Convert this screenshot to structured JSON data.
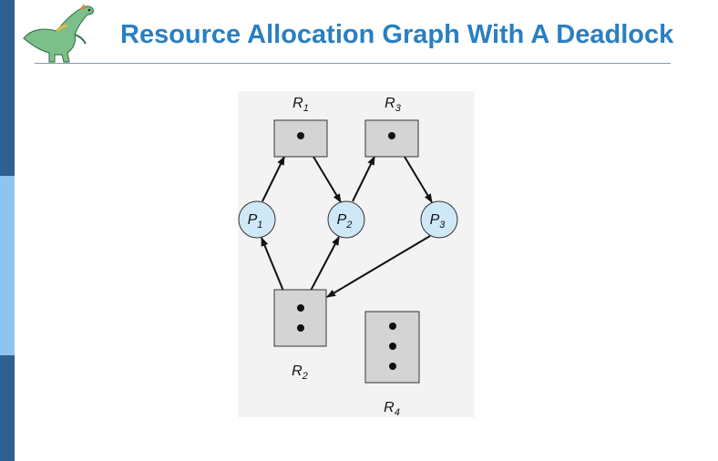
{
  "slide": {
    "title": "Resource Allocation Graph With A Deadlock"
  },
  "logo": {
    "icon": "dinosaur-icon"
  },
  "colors": {
    "sidebar_dark": "#2e6190",
    "sidebar_light": "#8fc4f0",
    "title": "#2a7fc1",
    "process_fill": "#cfe8f7",
    "resource_fill": "#d4d4d4"
  },
  "diagram": {
    "processes": [
      {
        "id": "P1",
        "letter": "P",
        "sub": "1"
      },
      {
        "id": "P2",
        "letter": "P",
        "sub": "2"
      },
      {
        "id": "P3",
        "letter": "P",
        "sub": "3"
      }
    ],
    "resources": [
      {
        "id": "R1",
        "letter": "R",
        "sub": "1",
        "instances": 1
      },
      {
        "id": "R2",
        "letter": "R",
        "sub": "2",
        "instances": 2
      },
      {
        "id": "R3",
        "letter": "R",
        "sub": "3",
        "instances": 1
      },
      {
        "id": "R4",
        "letter": "R",
        "sub": "4",
        "instances": 3
      }
    ],
    "edges": [
      {
        "from": "P1",
        "to": "R1",
        "kind": "request"
      },
      {
        "from": "R1",
        "to": "P2",
        "kind": "assignment"
      },
      {
        "from": "P2",
        "to": "R3",
        "kind": "request"
      },
      {
        "from": "R3",
        "to": "P3",
        "kind": "assignment"
      },
      {
        "from": "P3",
        "to": "R2",
        "kind": "request"
      },
      {
        "from": "R2",
        "to": "P1",
        "kind": "assignment"
      },
      {
        "from": "R2",
        "to": "P2",
        "kind": "assignment"
      }
    ]
  }
}
